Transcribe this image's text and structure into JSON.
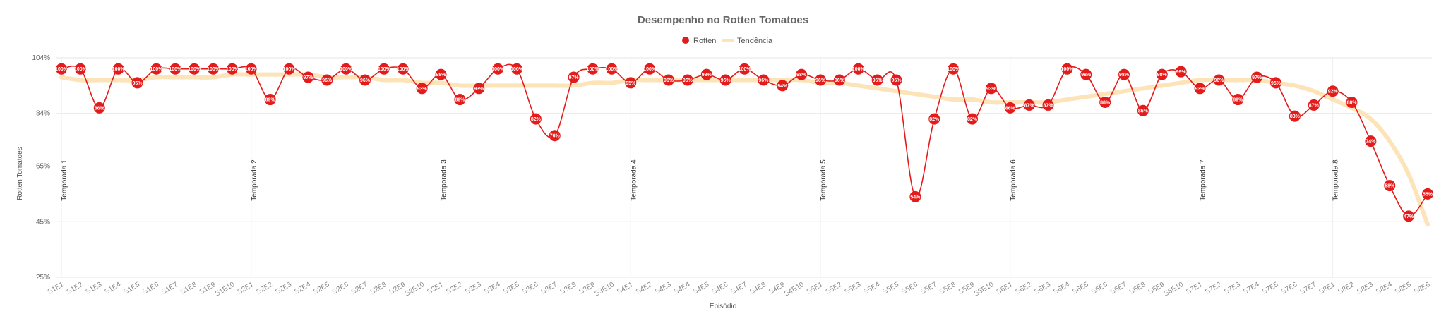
{
  "colors": {
    "rotten": "#e31b1b",
    "trend": "#fde3b8",
    "grid": "#e6e6e6"
  },
  "chart_data": {
    "type": "line",
    "title": "Desempenho no Rotten Tomatoes",
    "xlabel": "Episódio",
    "ylabel": "Rotten Tomatoes",
    "ylim": [
      25,
      104
    ],
    "yticks": [
      "25%",
      "45%",
      "65%",
      "84%",
      "104%"
    ],
    "legend": [
      {
        "name": "Rotten",
        "marker": "circle"
      },
      {
        "name": "Tendência",
        "marker": "line"
      }
    ],
    "legend_position": "top-center",
    "categories": [
      "S1E1",
      "S1E2",
      "S1E3",
      "S1E4",
      "S1E5",
      "S1E6",
      "S1E7",
      "S1E8",
      "S1E9",
      "S1E10",
      "S2E1",
      "S2E2",
      "S2E3",
      "S2E4",
      "S2E5",
      "S2E6",
      "S2E7",
      "S2E8",
      "S2E9",
      "S2E10",
      "S3E1",
      "S3E2",
      "S3E3",
      "S3E4",
      "S3E5",
      "S3E6",
      "S3E7",
      "S3E8",
      "S3E9",
      "S3E10",
      "S4E1",
      "S4E2",
      "S4E3",
      "S4E4",
      "S4E5",
      "S4E6",
      "S4E7",
      "S4E8",
      "S4E9",
      "S4E10",
      "S5E1",
      "S5E2",
      "S5E3",
      "S5E4",
      "S5E5",
      "S5E6",
      "S5E7",
      "S5E8",
      "S5E9",
      "S5E10",
      "S6E1",
      "S6E2",
      "S6E3",
      "S6E4",
      "S6E5",
      "S6E6",
      "S6E7",
      "S6E8",
      "S6E9",
      "S6E10",
      "S7E1",
      "S7E2",
      "S7E3",
      "S7E4",
      "S7E5",
      "S7E6",
      "S7E7",
      "S8E1",
      "S8E2",
      "S8E3",
      "S8E4",
      "S8E5",
      "S8E6"
    ],
    "series": [
      {
        "name": "Rotten",
        "values": [
          100,
          100,
          86,
          100,
          95,
          100,
          100,
          100,
          100,
          100,
          100,
          89,
          100,
          97,
          96,
          100,
          96,
          100,
          100,
          93,
          98,
          89,
          93,
          100,
          100,
          82,
          76,
          97,
          100,
          100,
          95,
          100,
          96,
          96,
          98,
          96,
          100,
          96,
          94,
          98,
          96,
          96,
          100,
          96,
          96,
          54,
          82,
          100,
          82,
          93,
          86,
          87,
          87,
          100,
          98,
          88,
          98,
          85,
          98,
          99,
          93,
          96,
          89,
          97,
          95,
          83,
          87,
          92,
          88,
          74,
          58,
          47,
          55
        ]
      },
      {
        "name": "Tendência",
        "values": [
          97,
          96,
          96,
          96,
          96,
          97,
          97,
          97,
          97,
          98,
          98,
          98,
          98,
          98,
          97,
          97,
          97,
          96,
          96,
          95,
          95,
          94,
          94,
          94,
          94,
          94,
          94,
          94,
          95,
          95,
          96,
          96,
          96,
          96,
          96,
          96,
          96,
          96,
          96,
          96,
          95,
          95,
          94,
          93,
          92,
          91,
          90,
          89,
          89,
          88,
          88,
          88,
          88,
          89,
          90,
          91,
          92,
          93,
          94,
          95,
          96,
          96,
          96,
          96,
          95,
          94,
          92,
          89,
          86,
          82,
          74,
          62,
          44
        ]
      }
    ],
    "seasons": [
      {
        "label": "Temporada 1",
        "start": "S1E1"
      },
      {
        "label": "Temporada 2",
        "start": "S2E1"
      },
      {
        "label": "Temporada 3",
        "start": "S3E1"
      },
      {
        "label": "Temporada 4",
        "start": "S4E1"
      },
      {
        "label": "Temporada 5",
        "start": "S5E1"
      },
      {
        "label": "Temporada 6",
        "start": "S6E1"
      },
      {
        "label": "Temporada 7",
        "start": "S7E1"
      },
      {
        "label": "Temporada 8",
        "start": "S8E1"
      }
    ]
  }
}
